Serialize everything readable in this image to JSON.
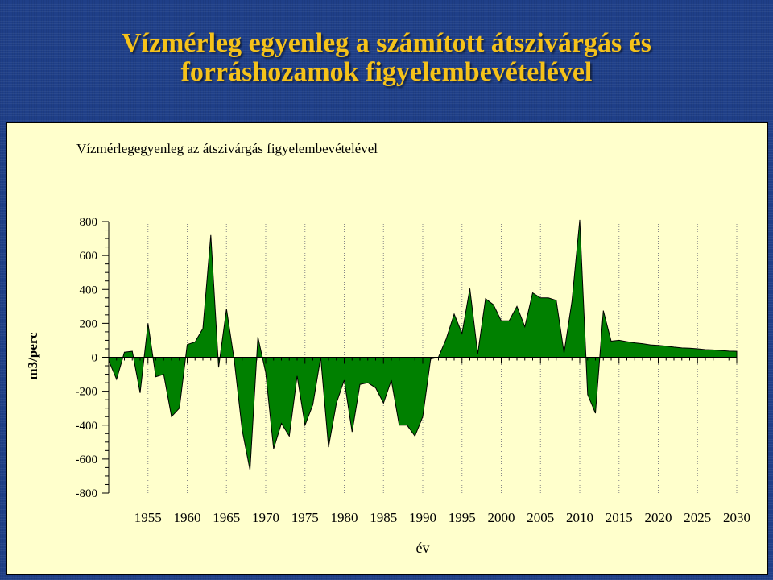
{
  "slide": {
    "title_line1": "Vízmérleg egyenleg a számított átszivárgás és",
    "title_line2": "forráshozamok figyelembevételével"
  },
  "chart_data": {
    "type": "area",
    "title": "Vízmérlegegyenleg az átszivárgás figyelembevételével",
    "xlabel": "év",
    "ylabel": "m3/perc",
    "ylim": [
      -800,
      800
    ],
    "xlim": [
      1950,
      2030
    ],
    "yticks": [
      800,
      600,
      400,
      200,
      0,
      -200,
      -400,
      -600,
      -800
    ],
    "xticks": [
      1955,
      1960,
      1965,
      1970,
      1975,
      1980,
      1985,
      1990,
      1995,
      2000,
      2005,
      2010,
      2015,
      2020,
      2025,
      2030
    ],
    "grid": "vertical",
    "fill_color": "#008000",
    "x": [
      1950,
      1951,
      1952,
      1953,
      1954,
      1955,
      1956,
      1957,
      1958,
      1959,
      1960,
      1961,
      1962,
      1963,
      1964,
      1965,
      1966,
      1967,
      1968,
      1969,
      1970,
      1971,
      1972,
      1973,
      1974,
      1975,
      1976,
      1977,
      1978,
      1979,
      1980,
      1981,
      1982,
      1983,
      1984,
      1985,
      1986,
      1987,
      1988,
      1989,
      1990,
      1991,
      1992,
      1993,
      1994,
      1995,
      1996,
      1997,
      1998,
      1999,
      2000,
      2001,
      2002,
      2003,
      2004,
      2005,
      2006,
      2007,
      2008,
      2009,
      2010,
      2011,
      2012,
      2013,
      2014,
      2015,
      2016,
      2017,
      2018,
      2019,
      2020,
      2021,
      2022,
      2023,
      2024,
      2025,
      2026,
      2027,
      2028,
      2029,
      2030
    ],
    "values": [
      -20,
      -130,
      30,
      35,
      -210,
      200,
      -115,
      -100,
      -350,
      -300,
      75,
      90,
      170,
      720,
      -60,
      285,
      -20,
      -430,
      -665,
      120,
      -90,
      -540,
      -390,
      -465,
      -110,
      -400,
      -280,
      0,
      -530,
      -270,
      -135,
      -440,
      -160,
      -150,
      -180,
      -270,
      -135,
      -400,
      -400,
      -465,
      -350,
      -10,
      0,
      110,
      255,
      140,
      405,
      20,
      345,
      310,
      215,
      215,
      300,
      180,
      380,
      350,
      350,
      335,
      25,
      330,
      810,
      -220,
      -330,
      275,
      95,
      100,
      92,
      85,
      80,
      73,
      70,
      66,
      60,
      55,
      53,
      50,
      45,
      43,
      40,
      36,
      35
    ]
  }
}
